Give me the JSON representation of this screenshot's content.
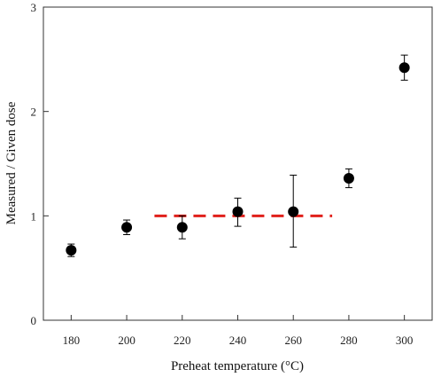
{
  "chart_data": {
    "type": "scatter",
    "title": "",
    "xlabel": "Preheat temperature (°C)",
    "ylabel": "Measured / Given dose",
    "xlim": [
      170,
      310
    ],
    "ylim": [
      0,
      3
    ],
    "xticks": [
      180,
      200,
      220,
      240,
      260,
      280,
      300
    ],
    "yticks": [
      0,
      1,
      2,
      3
    ],
    "xtick_labels": [
      "180",
      "200",
      "220",
      "240",
      "260",
      "280",
      "300"
    ],
    "ytick_labels": [
      "0",
      "1",
      "2",
      "3"
    ],
    "grid": false,
    "legend": "none",
    "series": [
      {
        "marker": "filled-circle",
        "color": "#000000",
        "points": [
          {
            "x": 180,
            "y": 0.67,
            "err_low": 0.61,
            "err_high": 0.73
          },
          {
            "x": 200,
            "y": 0.89,
            "err_low": 0.82,
            "err_high": 0.96
          },
          {
            "x": 220,
            "y": 0.89,
            "err_low": 0.78,
            "err_high": 1.0
          },
          {
            "x": 240,
            "y": 1.04,
            "err_low": 0.9,
            "err_high": 1.17
          },
          {
            "x": 260,
            "y": 1.04,
            "err_low": 0.7,
            "err_high": 1.39
          },
          {
            "x": 280,
            "y": 1.36,
            "err_low": 1.27,
            "err_high": 1.45
          },
          {
            "x": 300,
            "y": 2.42,
            "err_low": 2.3,
            "err_high": 2.54
          }
        ]
      }
    ],
    "reference_line": {
      "x_start": 210,
      "x_end": 274,
      "y": 1.0,
      "style": "dashed",
      "color": "#e0201b"
    }
  }
}
